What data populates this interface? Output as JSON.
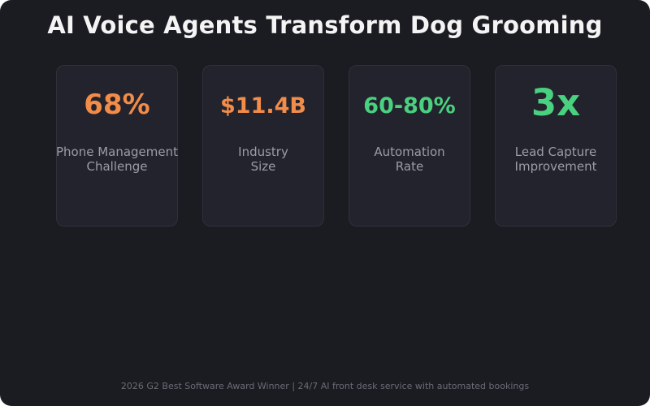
{
  "title": "AI Voice Agents Transform Dog Grooming",
  "cards": [
    {
      "value": "68%",
      "label_line1": "Phone Management",
      "label_line2": "Challenge",
      "color": "#f28c48"
    },
    {
      "value": "$11.4B",
      "label_line1": "Industry",
      "label_line2": "Size",
      "color": "#f28c48"
    },
    {
      "value": "60-80%",
      "label_line1": "Automation",
      "label_line2": "Rate",
      "color": "#4ad17f"
    },
    {
      "value": "3x",
      "label_line1": "Lead Capture",
      "label_line2": "Improvement",
      "color": "#4ad17f"
    }
  ],
  "footer": "2026 G2 Best Software Award Winner | 24/7 AI front desk service with automated bookings"
}
